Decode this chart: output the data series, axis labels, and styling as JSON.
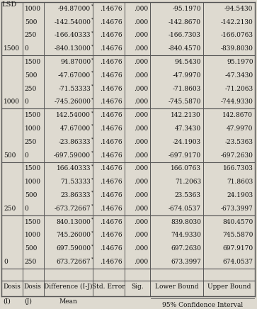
{
  "title": "LSD",
  "col_headers_row1": [
    "(I)",
    "(J)",
    "Mean",
    "",
    "",
    "95% Confidence Interval"
  ],
  "col_headers_row2": [
    "Dosis",
    "Dosis",
    "Difference (I-J)",
    "Std. Error",
    "Sig.",
    "Lower Bound",
    "Upper Bound"
  ],
  "rows": [
    [
      "0",
      "250",
      "673.72667*",
      ".14676",
      ".000",
      "673.3997",
      "674.0537"
    ],
    [
      "",
      "500",
      "697.59000*",
      ".14676",
      ".000",
      "697.2630",
      "697.9170"
    ],
    [
      "",
      "1000",
      "745.26000*",
      ".14676",
      ".000",
      "744.9330",
      "745.5870"
    ],
    [
      "",
      "1500",
      "840.13000*",
      ".14676",
      ".000",
      "839.8030",
      "840.4570"
    ],
    [
      "250",
      "0",
      "-673.72667*",
      ".14676",
      ".000",
      "-674.0537",
      "-673.3997"
    ],
    [
      "",
      "500",
      "23.86333*",
      ".14676",
      ".000",
      "23.5363",
      "24.1903"
    ],
    [
      "",
      "1000",
      "71.53333*",
      ".14676",
      ".000",
      "71.2063",
      "71.8603"
    ],
    [
      "",
      "1500",
      "166.40333*",
      ".14676",
      ".000",
      "166.0763",
      "166.7303"
    ],
    [
      "500",
      "0",
      "-697.59000*",
      ".14676",
      ".000",
      "-697.9170",
      "-697.2630"
    ],
    [
      "",
      "250",
      "-23.86333*",
      ".14676",
      ".000",
      "-24.1903",
      "-23.5363"
    ],
    [
      "",
      "1000",
      "47.67000*",
      ".14676",
      ".000",
      "47.3430",
      "47.9970"
    ],
    [
      "",
      "1500",
      "142.54000*",
      ".14676",
      ".000",
      "142.2130",
      "142.8670"
    ],
    [
      "1000",
      "0",
      "-745.26000*",
      ".14676",
      ".000",
      "-745.5870",
      "-744.9330"
    ],
    [
      "",
      "250",
      "-71.53333*",
      ".14676",
      ".000",
      "-71.8603",
      "-71.2063"
    ],
    [
      "",
      "500",
      "-47.67000*",
      ".14676",
      ".000",
      "-47.9970",
      "-47.3430"
    ],
    [
      "",
      "1500",
      "94.87000*",
      ".14676",
      ".000",
      "94.5430",
      "95.1970"
    ],
    [
      "1500",
      "0",
      "-840.13000*",
      ".14676",
      ".000",
      "-840.4570",
      "-839.8030"
    ],
    [
      "",
      "250",
      "-166.40333*",
      ".14676",
      ".000",
      "-166.7303",
      "-166.0763"
    ],
    [
      "",
      "500",
      "-142.54000*",
      ".14676",
      ".000",
      "-142.8670",
      "-142.2130"
    ],
    [
      "",
      "1000",
      "-94.87000*",
      ".14676",
      ".000",
      "-95.1970",
      "-94.5430"
    ]
  ],
  "group_starts": [
    0,
    4,
    8,
    12,
    16
  ],
  "bg_color": "#dedad0",
  "line_color": "#555555",
  "text_color": "#111111",
  "font_size": 6.5,
  "font_family": "DejaVu Serif"
}
